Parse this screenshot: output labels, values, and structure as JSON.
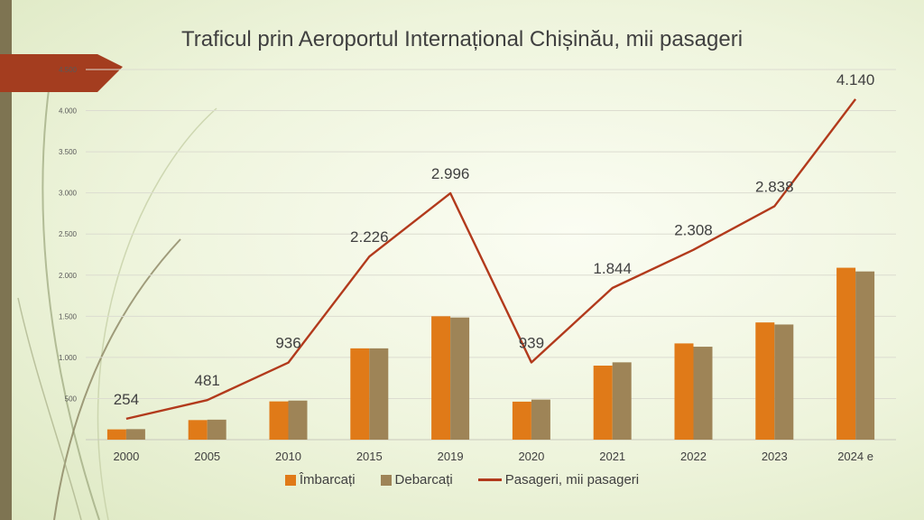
{
  "chart_data": {
    "type": "bar",
    "title": "Traficul prin Aeroportul Internațional Chișinău, mii pasageri",
    "categories": [
      "2000",
      "2005",
      "2010",
      "2015",
      "2019",
      "2020",
      "2021",
      "2022",
      "2023",
      "2024 e"
    ],
    "ylim": [
      0,
      4500
    ],
    "yticks": [
      500,
      1000,
      1500,
      2000,
      2500,
      3000,
      3500,
      4000,
      4500
    ],
    "ytick_labels": [
      "500",
      "1.000",
      "1.500",
      "2.000",
      "2.500",
      "3.000",
      "3.500",
      "4.000",
      "4.500"
    ],
    "grid": true,
    "legend_position": "bottom",
    "series": [
      {
        "name": "Îmbarcați",
        "type": "bar",
        "color": "#e07a18",
        "values": [
          125,
          238,
          465,
          1110,
          1500,
          462,
          900,
          1170,
          1425,
          2090
        ]
      },
      {
        "name": "Debarcați",
        "type": "bar",
        "color": "#9e8457",
        "values": [
          128,
          243,
          475,
          1110,
          1485,
          487,
          940,
          1130,
          1400,
          2045
        ]
      },
      {
        "name": "Pasageri, mii pasageri",
        "type": "line",
        "color": "#b23a1c",
        "values": [
          254,
          481,
          936,
          2226,
          2996,
          939,
          1844,
          2308,
          2838,
          4140
        ],
        "labels": [
          "254",
          "481",
          "936",
          "2.226",
          "2.996",
          "939",
          "1.844",
          "2.308",
          "2.838",
          "4.140"
        ]
      }
    ]
  }
}
